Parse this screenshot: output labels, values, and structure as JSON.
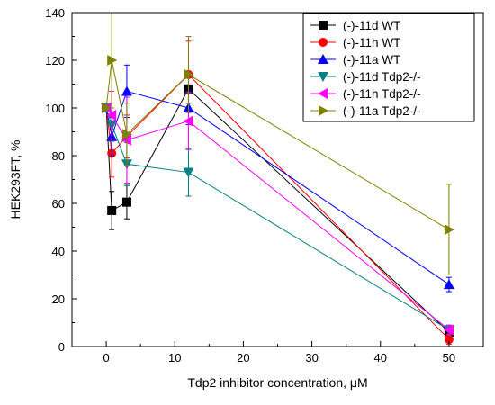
{
  "chart_data": {
    "type": "line",
    "xlabel": "Tdp2 inhibitor concentration, μM",
    "ylabel": "HEK293FT, %",
    "xlim": [
      -5,
      55
    ],
    "ylim": [
      0,
      140
    ],
    "x_ticks": [
      0,
      10,
      20,
      30,
      40,
      50
    ],
    "y_ticks": [
      0,
      20,
      40,
      60,
      80,
      100,
      120,
      140
    ],
    "x_tick_labels": [
      "0",
      "10",
      "20",
      "30",
      "40",
      "50"
    ],
    "y_tick_labels": [
      "0",
      "20",
      "40",
      "60",
      "80",
      "100",
      "120",
      "140"
    ],
    "grid": false,
    "legend_position": "top-right",
    "series": [
      {
        "name": "(-)-11d WT",
        "color": "#000000",
        "marker": "square",
        "x": [
          0,
          0.8,
          3,
          12,
          50
        ],
        "y": [
          100,
          57,
          60.5,
          108,
          6
        ],
        "err": [
          0,
          8,
          7,
          6,
          2
        ]
      },
      {
        "name": "(-)-11h WT",
        "color": "#ff0000",
        "marker": "circle",
        "x": [
          0,
          0.8,
          3,
          12,
          50
        ],
        "y": [
          100,
          81,
          88,
          114,
          3
        ],
        "err": [
          0,
          10,
          9,
          14,
          2
        ]
      },
      {
        "name": "(-)-11a WT",
        "color": "#0000ff",
        "marker": "triangle-up",
        "x": [
          0,
          0.8,
          3,
          12,
          50
        ],
        "y": [
          100,
          88,
          107,
          100,
          26
        ],
        "err": [
          0,
          8,
          11,
          7,
          3
        ]
      },
      {
        "name": "(-)-11d Tdp2-/-",
        "color": "#008080",
        "marker": "triangle-down",
        "x": [
          0,
          0.8,
          3,
          12,
          50
        ],
        "y": [
          100,
          93,
          76.5,
          73,
          7
        ],
        "err": [
          0,
          7,
          9,
          10,
          2
        ]
      },
      {
        "name": "(-)-11h Tdp2-/-",
        "color": "#ff00ff",
        "marker": "triangle-left",
        "x": [
          0,
          0.8,
          3,
          12,
          50
        ],
        "y": [
          100,
          97,
          86.5,
          94.5,
          7
        ],
        "err": [
          0,
          10,
          18,
          12,
          2
        ]
      },
      {
        "name": "(-)-11a Tdp2-/-",
        "color": "#808000",
        "marker": "triangle-right",
        "x": [
          0,
          0.8,
          3,
          12,
          50
        ],
        "y": [
          100,
          120,
          89,
          114,
          49
        ],
        "err": [
          0,
          20,
          13,
          16,
          19
        ]
      }
    ]
  }
}
